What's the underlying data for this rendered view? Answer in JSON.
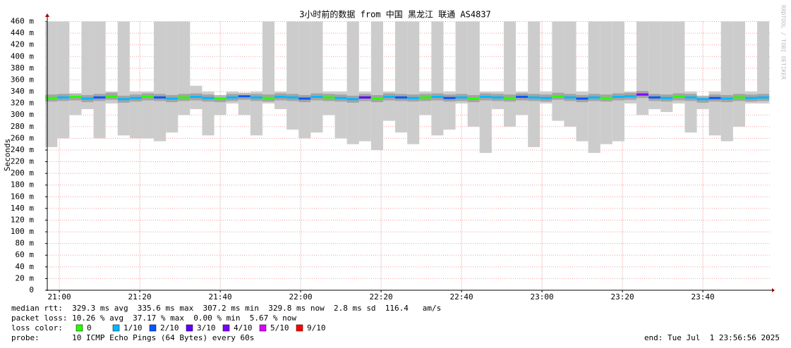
{
  "chart_data": {
    "type": "line",
    "title": "3小时前的数据 from 中国 黑龙江 联通 AS4837",
    "y_label": "Seconds",
    "watermark": "RRDTOOL / TOBI OETIKER",
    "xlim": [
      "20:57",
      "23:57"
    ],
    "xticks": [
      "21:00",
      "21:20",
      "21:40",
      "22:00",
      "22:20",
      "22:40",
      "23:00",
      "23:20",
      "23:40"
    ],
    "ylim": [
      0,
      0.46
    ],
    "yticks": [
      0,
      {
        "value": 0.02,
        "label": "20 m"
      },
      {
        "value": 0.04,
        "label": "40 m"
      },
      {
        "value": 0.06,
        "label": "60 m"
      },
      {
        "value": 0.08,
        "label": "80 m"
      },
      {
        "value": 0.1,
        "label": "100 m"
      },
      {
        "value": 0.12,
        "label": "120 m"
      },
      {
        "value": 0.14,
        "label": "140 m"
      },
      {
        "value": 0.16,
        "label": "160 m"
      },
      {
        "value": 0.18,
        "label": "180 m"
      },
      {
        "value": 0.2,
        "label": "200 m"
      },
      {
        "value": 0.22,
        "label": "220 m"
      },
      {
        "value": 0.24,
        "label": "240 m"
      },
      {
        "value": 0.26,
        "label": "260 m"
      },
      {
        "value": 0.28,
        "label": "280 m"
      },
      {
        "value": 0.3,
        "label": "300 m"
      },
      {
        "value": 0.32,
        "label": "320 m"
      },
      {
        "value": 0.34,
        "label": "340 m"
      },
      {
        "value": 0.36,
        "label": "360 m"
      },
      {
        "value": 0.38,
        "label": "380 m"
      },
      {
        "value": 0.4,
        "label": "400 m"
      },
      {
        "value": 0.42,
        "label": "420 m"
      },
      {
        "value": 0.44,
        "label": "440 m"
      },
      {
        "value": 0.46,
        "label": "460 m"
      }
    ],
    "grid": true,
    "smoke_color": "#cccccc",
    "x": [
      "20:58",
      "21:01",
      "21:04",
      "21:07",
      "21:10",
      "21:13",
      "21:16",
      "21:19",
      "21:22",
      "21:25",
      "21:28",
      "21:31",
      "21:34",
      "21:37",
      "21:40",
      "21:43",
      "21:46",
      "21:49",
      "21:52",
      "21:55",
      "21:58",
      "22:01",
      "22:04",
      "22:07",
      "22:10",
      "22:13",
      "22:16",
      "22:19",
      "22:22",
      "22:25",
      "22:28",
      "22:31",
      "22:34",
      "22:37",
      "22:40",
      "22:43",
      "22:46",
      "22:49",
      "22:52",
      "22:55",
      "22:58",
      "23:01",
      "23:04",
      "23:07",
      "23:10",
      "23:13",
      "23:16",
      "23:19",
      "23:22",
      "23:25",
      "23:28",
      "23:31",
      "23:34",
      "23:37",
      "23:40",
      "23:43",
      "23:46",
      "23:49",
      "23:52",
      "23:55"
    ],
    "max": [
      0.46,
      0.46,
      0.33,
      0.46,
      0.46,
      0.34,
      0.46,
      0.34,
      0.34,
      0.46,
      0.46,
      0.46,
      0.35,
      0.34,
      0.33,
      0.34,
      0.33,
      0.34,
      0.46,
      0.34,
      0.46,
      0.46,
      0.46,
      0.34,
      0.34,
      0.46,
      0.34,
      0.46,
      0.34,
      0.46,
      0.46,
      0.34,
      0.46,
      0.34,
      0.46,
      0.46,
      0.34,
      0.34,
      0.46,
      0.34,
      0.46,
      0.34,
      0.46,
      0.46,
      0.34,
      0.46,
      0.46,
      0.46,
      0.34,
      0.46,
      0.46,
      0.46,
      0.46,
      0.34,
      0.33,
      0.34,
      0.46,
      0.46,
      0.34,
      0.46
    ],
    "min": [
      0.245,
      0.26,
      0.3,
      0.31,
      0.26,
      0.32,
      0.265,
      0.26,
      0.26,
      0.255,
      0.27,
      0.3,
      0.31,
      0.265,
      0.3,
      0.32,
      0.3,
      0.265,
      0.32,
      0.31,
      0.275,
      0.26,
      0.27,
      0.3,
      0.26,
      0.25,
      0.255,
      0.24,
      0.29,
      0.27,
      0.25,
      0.3,
      0.265,
      0.275,
      0.32,
      0.28,
      0.235,
      0.31,
      0.28,
      0.3,
      0.245,
      0.32,
      0.29,
      0.28,
      0.255,
      0.235,
      0.25,
      0.255,
      0.32,
      0.3,
      0.31,
      0.305,
      0.32,
      0.27,
      0.31,
      0.265,
      0.255,
      0.28,
      0.32,
      0.32
    ],
    "median": [
      0.329,
      0.33,
      0.331,
      0.328,
      0.33,
      0.332,
      0.327,
      0.329,
      0.331,
      0.33,
      0.328,
      0.33,
      0.331,
      0.329,
      0.328,
      0.33,
      0.332,
      0.33,
      0.329,
      0.331,
      0.33,
      0.328,
      0.331,
      0.33,
      0.329,
      0.327,
      0.33,
      0.328,
      0.331,
      0.33,
      0.329,
      0.33,
      0.331,
      0.329,
      0.33,
      0.328,
      0.331,
      0.33,
      0.329,
      0.331,
      0.33,
      0.329,
      0.332,
      0.33,
      0.328,
      0.33,
      0.329,
      0.331,
      0.332,
      0.335,
      0.33,
      0.329,
      0.331,
      0.33,
      0.327,
      0.329,
      0.328,
      0.33,
      0.329,
      0.33
    ],
    "losses": [
      0,
      1,
      0,
      1,
      2,
      0,
      1,
      1,
      0,
      2,
      1,
      0,
      1,
      1,
      0,
      1,
      2,
      1,
      0,
      1,
      1,
      2,
      1,
      0,
      1,
      1,
      3,
      0,
      1,
      2,
      1,
      0,
      1,
      2,
      1,
      0,
      1,
      1,
      0,
      2,
      1,
      1,
      0,
      1,
      2,
      1,
      0,
      1,
      1,
      4,
      2,
      1,
      0,
      1,
      1,
      2,
      1,
      0,
      1,
      1
    ],
    "stats": [
      "median rtt:  329.3 ms avg  335.6 ms max  307.2 ms min  329.8 ms now  2.8 ms sd  116.4   am/s",
      "packet loss: 10.26 % avg  37.17 % max  0.00 % min  5.67 % now"
    ],
    "loss_label": "loss color:",
    "loss_legend": [
      {
        "name": "0",
        "color": "#26ff00"
      },
      {
        "name": "1/10",
        "color": "#00b8ff"
      },
      {
        "name": "2/10",
        "color": "#0059ff"
      },
      {
        "name": "3/10",
        "color": "#5e00ff"
      },
      {
        "name": "4/10",
        "color": "#7e00ff"
      },
      {
        "name": "5/10",
        "color": "#dd00ff"
      },
      {
        "name": "9/10",
        "color": "#ff0000"
      }
    ],
    "probe": "probe:       10 ICMP Echo Pings (64 Bytes) every 60s",
    "end": "end: Tue Jul  1 23:56:56 2025"
  }
}
